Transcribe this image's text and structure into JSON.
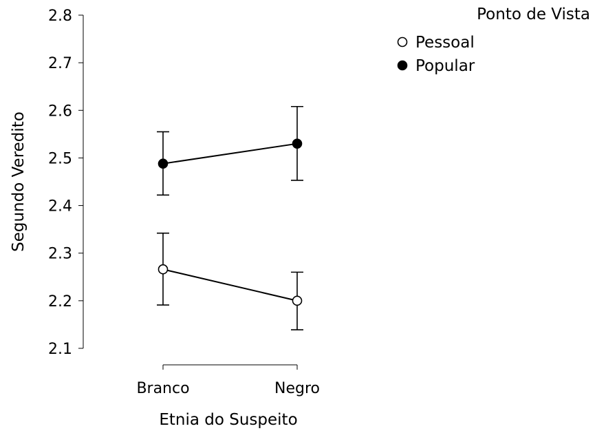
{
  "chart_data": {
    "type": "line",
    "title": "",
    "xlabel": "Etnia do Suspeito",
    "ylabel": "Segundo Veredito",
    "categories": [
      "Branco",
      "Negro"
    ],
    "ylim": [
      2.1,
      2.8
    ],
    "yticks": [
      2.1,
      2.2,
      2.3,
      2.4,
      2.5,
      2.6,
      2.7,
      2.8
    ],
    "ytick_labels": [
      "2.1",
      "2.2",
      "2.3",
      "2.4",
      "2.5",
      "2.6",
      "2.7",
      "2.8"
    ],
    "grid": false,
    "legend": {
      "title": "Ponto de Vista",
      "placement": "top-right"
    },
    "series": [
      {
        "name": "Pessoal",
        "marker": "open-circle",
        "values": [
          2.266,
          2.2
        ],
        "error_lower": [
          2.191,
          2.139
        ],
        "error_upper": [
          2.342,
          2.26
        ]
      },
      {
        "name": "Popular",
        "marker": "filled-circle",
        "values": [
          2.488,
          2.53
        ],
        "error_lower": [
          2.422,
          2.453
        ],
        "error_upper": [
          2.555,
          2.608
        ]
      }
    ]
  }
}
